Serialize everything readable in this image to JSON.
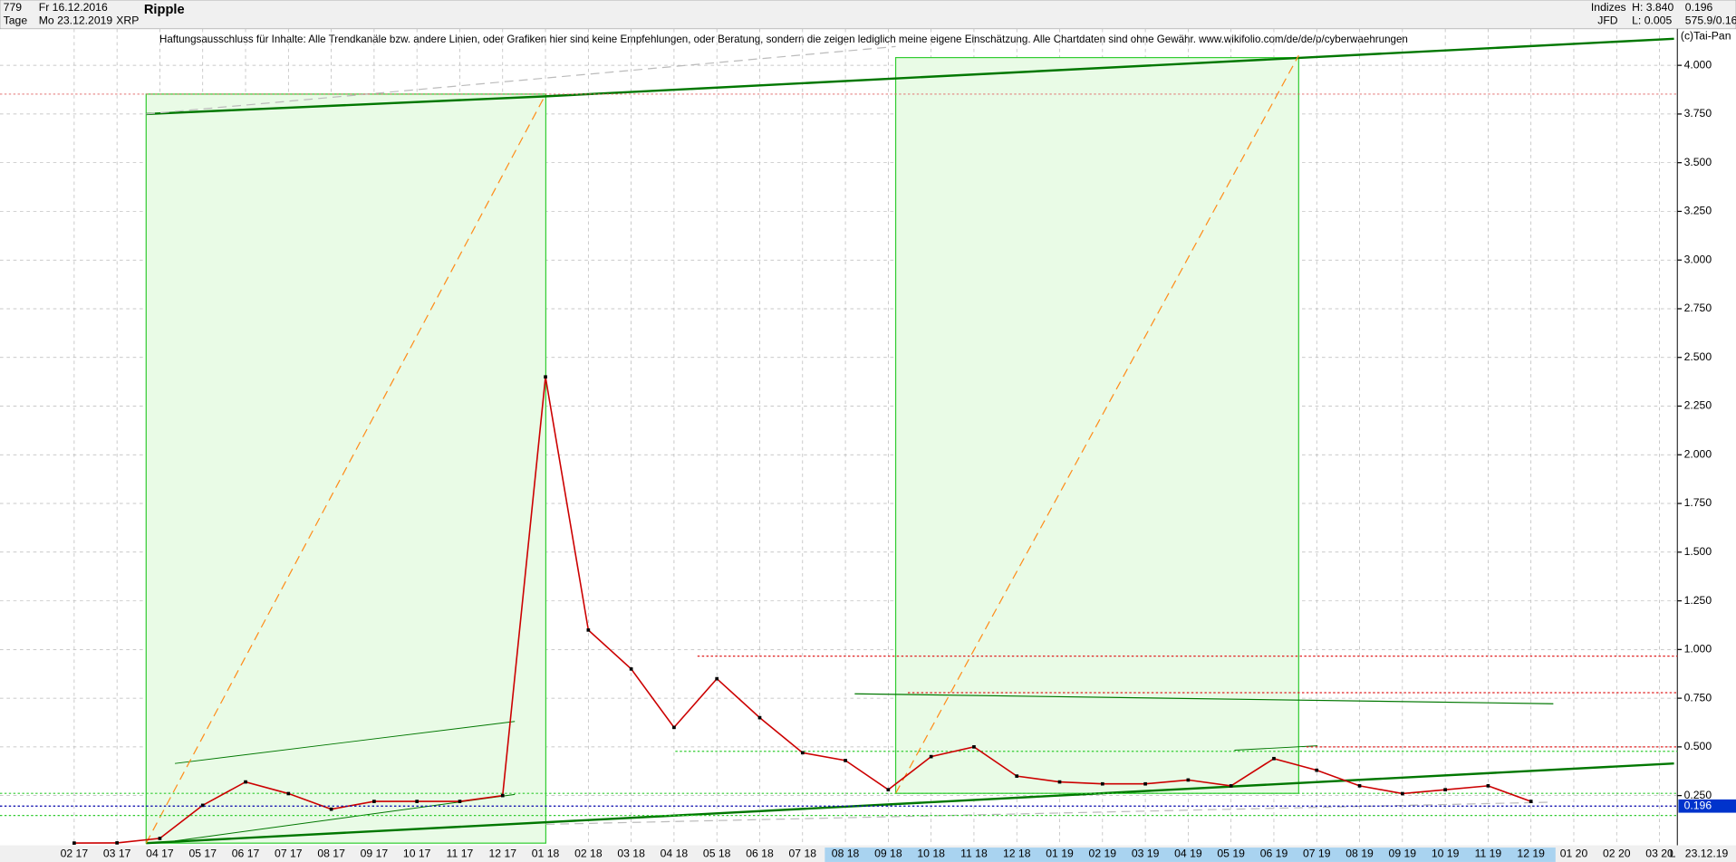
{
  "chart_data": {
    "type": "line",
    "title": "Ripple",
    "subtitle": "XRP",
    "header": {
      "count": "779",
      "period": "Tage",
      "from": "Fr 16.12.2016",
      "to": "Mo 23.12.2019",
      "source_a": "Indizes",
      "source_b": "JFD",
      "high": "H: 3.840",
      "low": "L: 0.005",
      "last": "0.196",
      "info": "575.9/0.16",
      "copyright": "(c)Tai-Pan",
      "scale": "L",
      "date": "23.12.19"
    },
    "annotation": "Haftungsausschluss für Inhalte: Alle Trendkanäle bzw. andere Linien, oder Grafiken hier sind keine Empfehlungen, oder Beratung, sondern die zeigen lediglich meine eigene Einschätzung. Alle Chartdaten sind ohne Gewähr.  www.wikifolio.com/de/de/p/cyberwaehrungen",
    "categories": [
      "02 17",
      "03 17",
      "04 17",
      "05 17",
      "06 17",
      "07 17",
      "08 17",
      "09 17",
      "10 17",
      "11 17",
      "12 17",
      "01 18",
      "02 18",
      "03 18",
      "04 18",
      "05 18",
      "06 18",
      "07 18",
      "08 18",
      "09 18",
      "10 18",
      "11 18",
      "12 18",
      "01 19",
      "02 19",
      "03 19",
      "04 19",
      "05 19",
      "06 19",
      "07 19",
      "08 19",
      "09 19",
      "10 19",
      "11 19",
      "12 19",
      "01 20",
      "02 20",
      "03 20"
    ],
    "series": [
      {
        "name": "XRP",
        "color": "#cc0000",
        "values": [
          0.006,
          0.007,
          0.03,
          0.2,
          0.32,
          0.26,
          0.18,
          0.22,
          0.22,
          0.22,
          0.25,
          2.4,
          1.1,
          0.9,
          0.6,
          0.85,
          0.65,
          0.47,
          0.43,
          0.28,
          0.45,
          0.5,
          0.35,
          0.32,
          0.31,
          0.31,
          0.33,
          0.3,
          0.44,
          0.38,
          0.3,
          0.26,
          0.28,
          0.3,
          0.22,
          null,
          null,
          null
        ]
      }
    ],
    "current_price": 0.196,
    "ylim": [
      0,
      4.25
    ],
    "yticks": [
      {
        "value": 0.25,
        "label": "0.250"
      },
      {
        "value": 0.5,
        "label": "0.500"
      },
      {
        "value": 0.75,
        "label": "0.750"
      },
      {
        "value": 1,
        "label": "1.000"
      },
      {
        "value": 1.25,
        "label": "1.250"
      },
      {
        "value": 1.5,
        "label": "1.500"
      },
      {
        "value": 1.75,
        "label": "1.750"
      },
      {
        "value": 2,
        "label": "2.000"
      },
      {
        "value": 2.25,
        "label": "2.250"
      },
      {
        "value": 2.5,
        "label": "2.500"
      },
      {
        "value": 2.75,
        "label": "2.750"
      },
      {
        "value": 3,
        "label": "3.000"
      },
      {
        "value": 3.25,
        "label": "3.250"
      },
      {
        "value": 3.5,
        "label": "3.500"
      },
      {
        "value": 3.75,
        "label": "3.750"
      },
      {
        "value": 4,
        "label": "4.000"
      }
    ],
    "grid": true
  }
}
